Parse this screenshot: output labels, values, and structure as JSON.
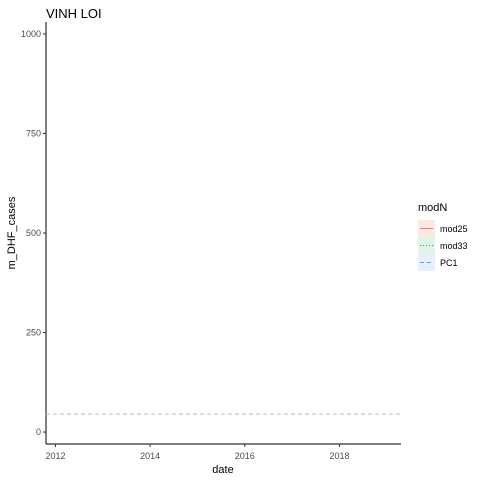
{
  "chart_data": {
    "type": "line",
    "title": "VINH LOI",
    "xlabel": "date",
    "ylabel": "m_DHF_cases",
    "xlim": [
      2011.8,
      2019.3
    ],
    "ylim": [
      -30,
      1030
    ],
    "x_ticks": [
      2012,
      2014,
      2016,
      2018
    ],
    "y_ticks": [
      0,
      250,
      500,
      750,
      1000
    ],
    "grid": false,
    "legend": {
      "title": "modN",
      "placement": "right",
      "entries": [
        {
          "name": "mod25",
          "color": "#F8766D",
          "linetype": "solid",
          "fill": "#fde8e6"
        },
        {
          "name": "mod33",
          "color": "#00BA38",
          "linetype": "dotted",
          "fill": "#e0f5e6"
        },
        {
          "name": "PC1",
          "color": "#619CFF",
          "linetype": "dashed",
          "fill": "#e8effd"
        }
      ]
    },
    "reference_line": {
      "y": 45,
      "color": "#bbbbbb",
      "linetype": "dashed"
    },
    "series": [
      {
        "name": "mod25",
        "x": [],
        "y": []
      },
      {
        "name": "mod33",
        "x": [],
        "y": []
      },
      {
        "name": "PC1",
        "x": [],
        "y": []
      }
    ]
  }
}
